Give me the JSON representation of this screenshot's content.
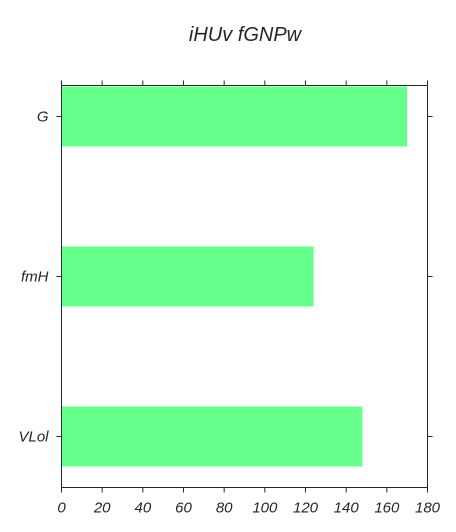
{
  "chart_data": {
    "type": "bar",
    "orientation": "horizontal",
    "title": "iHUv fGNPw",
    "xlabel": "",
    "ylabel": "",
    "categories": [
      "G",
      "fmH",
      "VLol"
    ],
    "values": [
      170,
      124,
      148
    ],
    "xlim": [
      0,
      180
    ],
    "xticks": [
      0,
      20,
      40,
      60,
      80,
      100,
      120,
      140,
      160,
      180
    ],
    "grid": false,
    "legend": "none",
    "bar_color": "#66ff8c"
  }
}
